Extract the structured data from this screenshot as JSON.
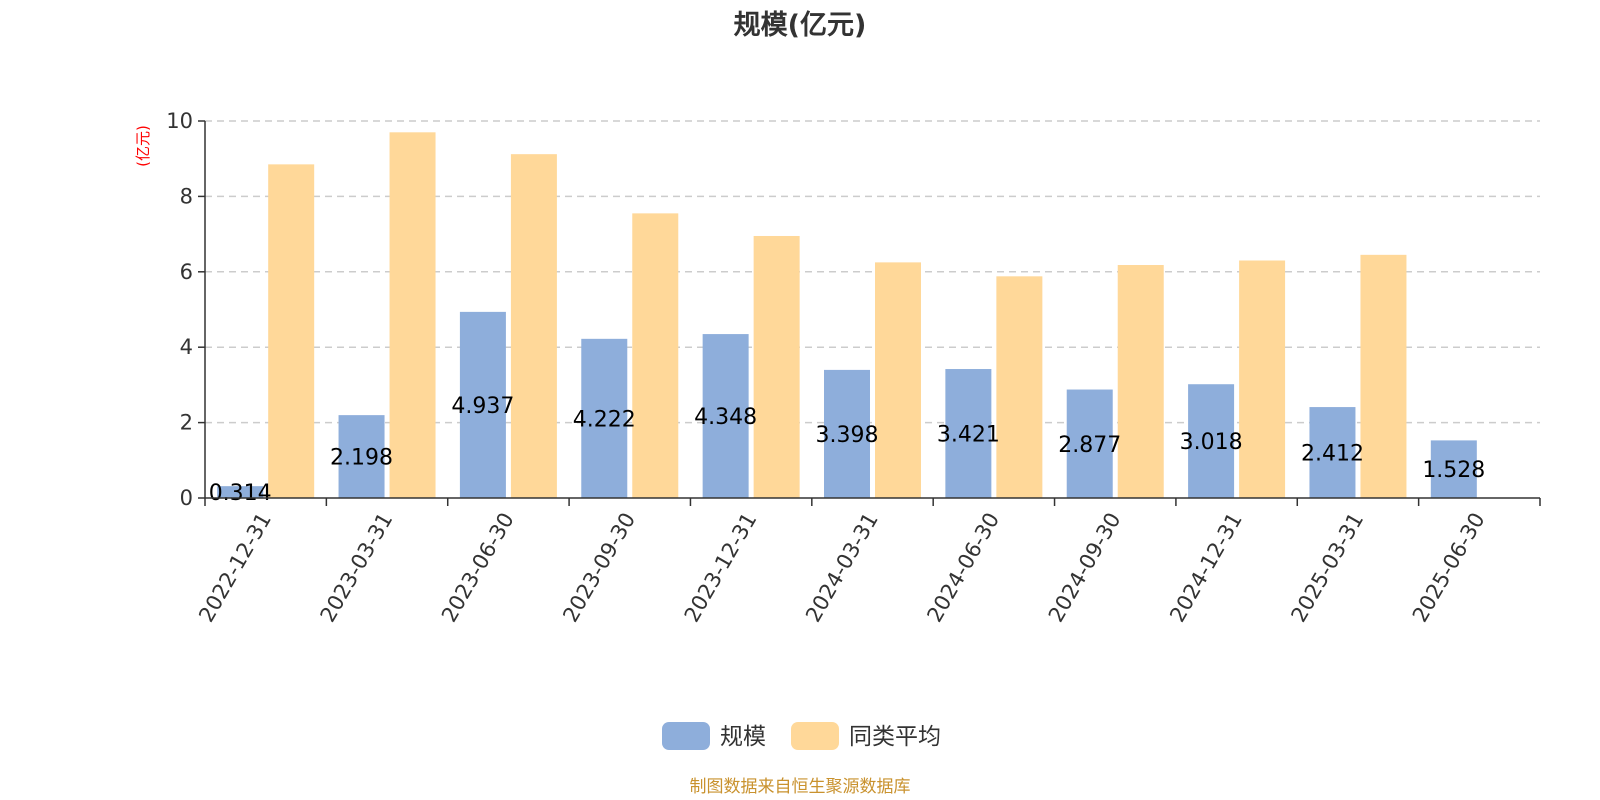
{
  "chart_data": {
    "type": "bar",
    "title": "规模(亿元)",
    "unit_label": "(亿元)",
    "categories": [
      "2022-12-31",
      "2023-03-31",
      "2023-06-30",
      "2023-09-30",
      "2023-12-31",
      "2024-03-31",
      "2024-06-30",
      "2024-09-30",
      "2024-12-31",
      "2025-03-31",
      "2025-06-30"
    ],
    "series": [
      {
        "name": "规模",
        "color": "#8eaedb",
        "values": [
          0.314,
          2.198,
          4.937,
          4.222,
          4.348,
          3.398,
          3.421,
          2.877,
          3.018,
          2.412,
          1.528
        ],
        "labels": [
          "0.314",
          "2.198",
          "4.937",
          "4.222",
          "4.348",
          "3.398",
          "3.421",
          "2.877",
          "3.018",
          "2.412",
          "1.528"
        ]
      },
      {
        "name": "同类平均",
        "color": "#ffd899",
        "values": [
          8.85,
          9.7,
          9.12,
          7.55,
          6.95,
          6.25,
          5.88,
          6.18,
          6.3,
          6.45,
          null
        ]
      }
    ],
    "ylim": [
      0,
      10
    ],
    "yticks": [
      "0",
      "2",
      "4",
      "6",
      "8",
      "10"
    ],
    "grid": true,
    "legend_position": "bottom-center"
  },
  "source": {
    "text": "制图数据来自恒生聚源数据库",
    "color": "#c9922e"
  }
}
